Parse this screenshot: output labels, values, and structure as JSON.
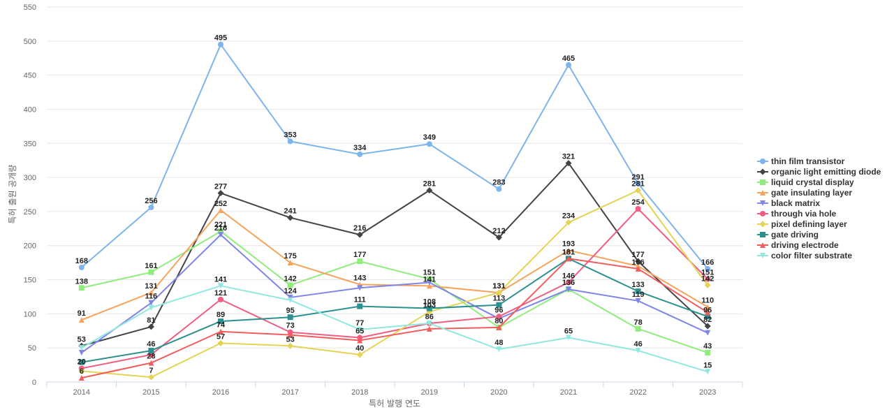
{
  "chart_data": {
    "type": "line",
    "title": "",
    "xlabel": "특허 발행 연도",
    "ylabel": "특허 출원 공개량",
    "ylim": [
      0,
      550
    ],
    "yticks": [
      0,
      50,
      100,
      150,
      200,
      250,
      300,
      350,
      400,
      450,
      500,
      550
    ],
    "categories": [
      "2014",
      "2015",
      "2016",
      "2017",
      "2018",
      "2019",
      "2020",
      "2021",
      "2022",
      "2023"
    ],
    "grid": "horizontal",
    "legend_position": "right",
    "series": [
      {
        "name": "thin film transistor",
        "color": "#7cb5ec",
        "marker": "circle",
        "values": [
          168,
          256,
          495,
          353,
          334,
          349,
          283,
          465,
          291,
          166
        ]
      },
      {
        "name": "organic light emitting diode",
        "color": "#434348",
        "marker": "diamond",
        "values": [
          53,
          81,
          277,
          241,
          216,
          281,
          212,
          321,
          177,
          82
        ]
      },
      {
        "name": "liquid crystal display",
        "color": "#90ed7d",
        "marker": "square",
        "values": [
          138,
          161,
          221,
          142,
          177,
          151,
          80,
          136,
          78,
          43
        ]
      },
      {
        "name": "gate insulating layer",
        "color": "#f7a35c",
        "marker": "triangle",
        "values": [
          91,
          131,
          252,
          175,
          143,
          141,
          131,
          193,
          170,
          110
        ]
      },
      {
        "name": "black matrix",
        "color": "#8085e9",
        "marker": "triangle-down",
        "values": [
          43,
          116,
          216,
          124,
          138,
          146,
          93,
          136,
          119,
          72
        ]
      },
      {
        "name": "through via hole",
        "color": "#f15c80",
        "marker": "circle",
        "values": [
          20,
          40,
          121,
          73,
          65,
          86,
          96,
          146,
          254,
          151
        ]
      },
      {
        "name": "pixel defining layer",
        "color": "#e4d354",
        "marker": "diamond",
        "values": [
          16,
          7,
          57,
          53,
          40,
          103,
          131,
          234,
          281,
          142
        ]
      },
      {
        "name": "gate driving",
        "color": "#2b908f",
        "marker": "square",
        "values": [
          29,
          46,
          89,
          95,
          111,
          108,
          113,
          181,
          133,
          96
        ]
      },
      {
        "name": "driving electrode",
        "color": "#f45b5b",
        "marker": "triangle",
        "values": [
          6,
          28,
          74,
          69,
          61,
          78,
          80,
          181,
          166,
          102
        ]
      },
      {
        "name": "color filter substrate",
        "color": "#91e8e1",
        "marker": "triangle-down",
        "values": [
          50,
          109,
          141,
          120,
          77,
          86,
          48,
          65,
          46,
          15
        ]
      }
    ],
    "data_labels": [
      {
        "series": 0,
        "points": [
          0,
          1,
          2,
          3,
          4,
          5,
          6,
          7,
          8,
          9
        ]
      },
      {
        "series": 1,
        "points": [
          0,
          1,
          2,
          3,
          4,
          5,
          6,
          7,
          8,
          9
        ]
      },
      {
        "series": 2,
        "points": [
          0,
          1,
          2,
          3,
          4,
          5,
          6,
          7,
          8,
          9
        ]
      },
      {
        "series": 3,
        "points": [
          0,
          1,
          2,
          3,
          4,
          5,
          6,
          7,
          9
        ]
      },
      {
        "series": 4,
        "points": [
          1,
          2,
          3,
          8
        ]
      },
      {
        "series": 5,
        "points": [
          0,
          2,
          3,
          4,
          5,
          6,
          7,
          8,
          9
        ]
      },
      {
        "series": 6,
        "points": [
          1,
          2,
          3,
          4,
          5,
          6,
          7,
          8,
          9
        ]
      },
      {
        "series": 7,
        "points": [
          1,
          2,
          3,
          4,
          5,
          6,
          7,
          8,
          9
        ]
      },
      {
        "series": 8,
        "points": [
          0,
          1,
          2,
          7,
          8
        ]
      },
      {
        "series": 9,
        "points": [
          2,
          4,
          6,
          7,
          8,
          9
        ]
      }
    ]
  }
}
